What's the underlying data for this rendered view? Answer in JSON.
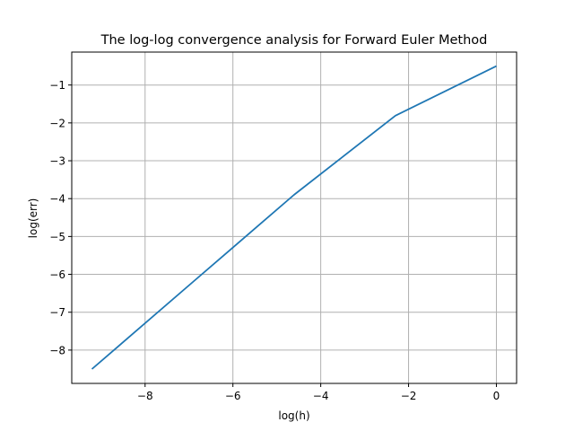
{
  "chart_data": {
    "type": "line",
    "title": "The log-log convergence analysis for Forward Euler Method",
    "xlabel": "log(h)",
    "ylabel": "log(err)",
    "xlim": [
      -9.67,
      0.46
    ],
    "ylim": [
      -8.88,
      -0.13
    ],
    "xticks": [
      -8,
      -6,
      -4,
      -2,
      0
    ],
    "xtick_labels": [
      "−8",
      "−6",
      "−4",
      "−2",
      "0"
    ],
    "yticks": [
      -8,
      -7,
      -6,
      -5,
      -4,
      -3,
      -2,
      -1
    ],
    "ytick_labels": [
      "−8",
      "−7",
      "−6",
      "−5",
      "−4",
      "−3",
      "−2",
      "−1"
    ],
    "grid": true,
    "series": [
      {
        "color": "#1f77b4",
        "x": [
          -9.21,
          -6.91,
          -4.61,
          -2.3,
          0.0
        ],
        "y": [
          -8.5,
          -6.2,
          -3.9,
          -1.81,
          -0.5
        ]
      }
    ]
  }
}
